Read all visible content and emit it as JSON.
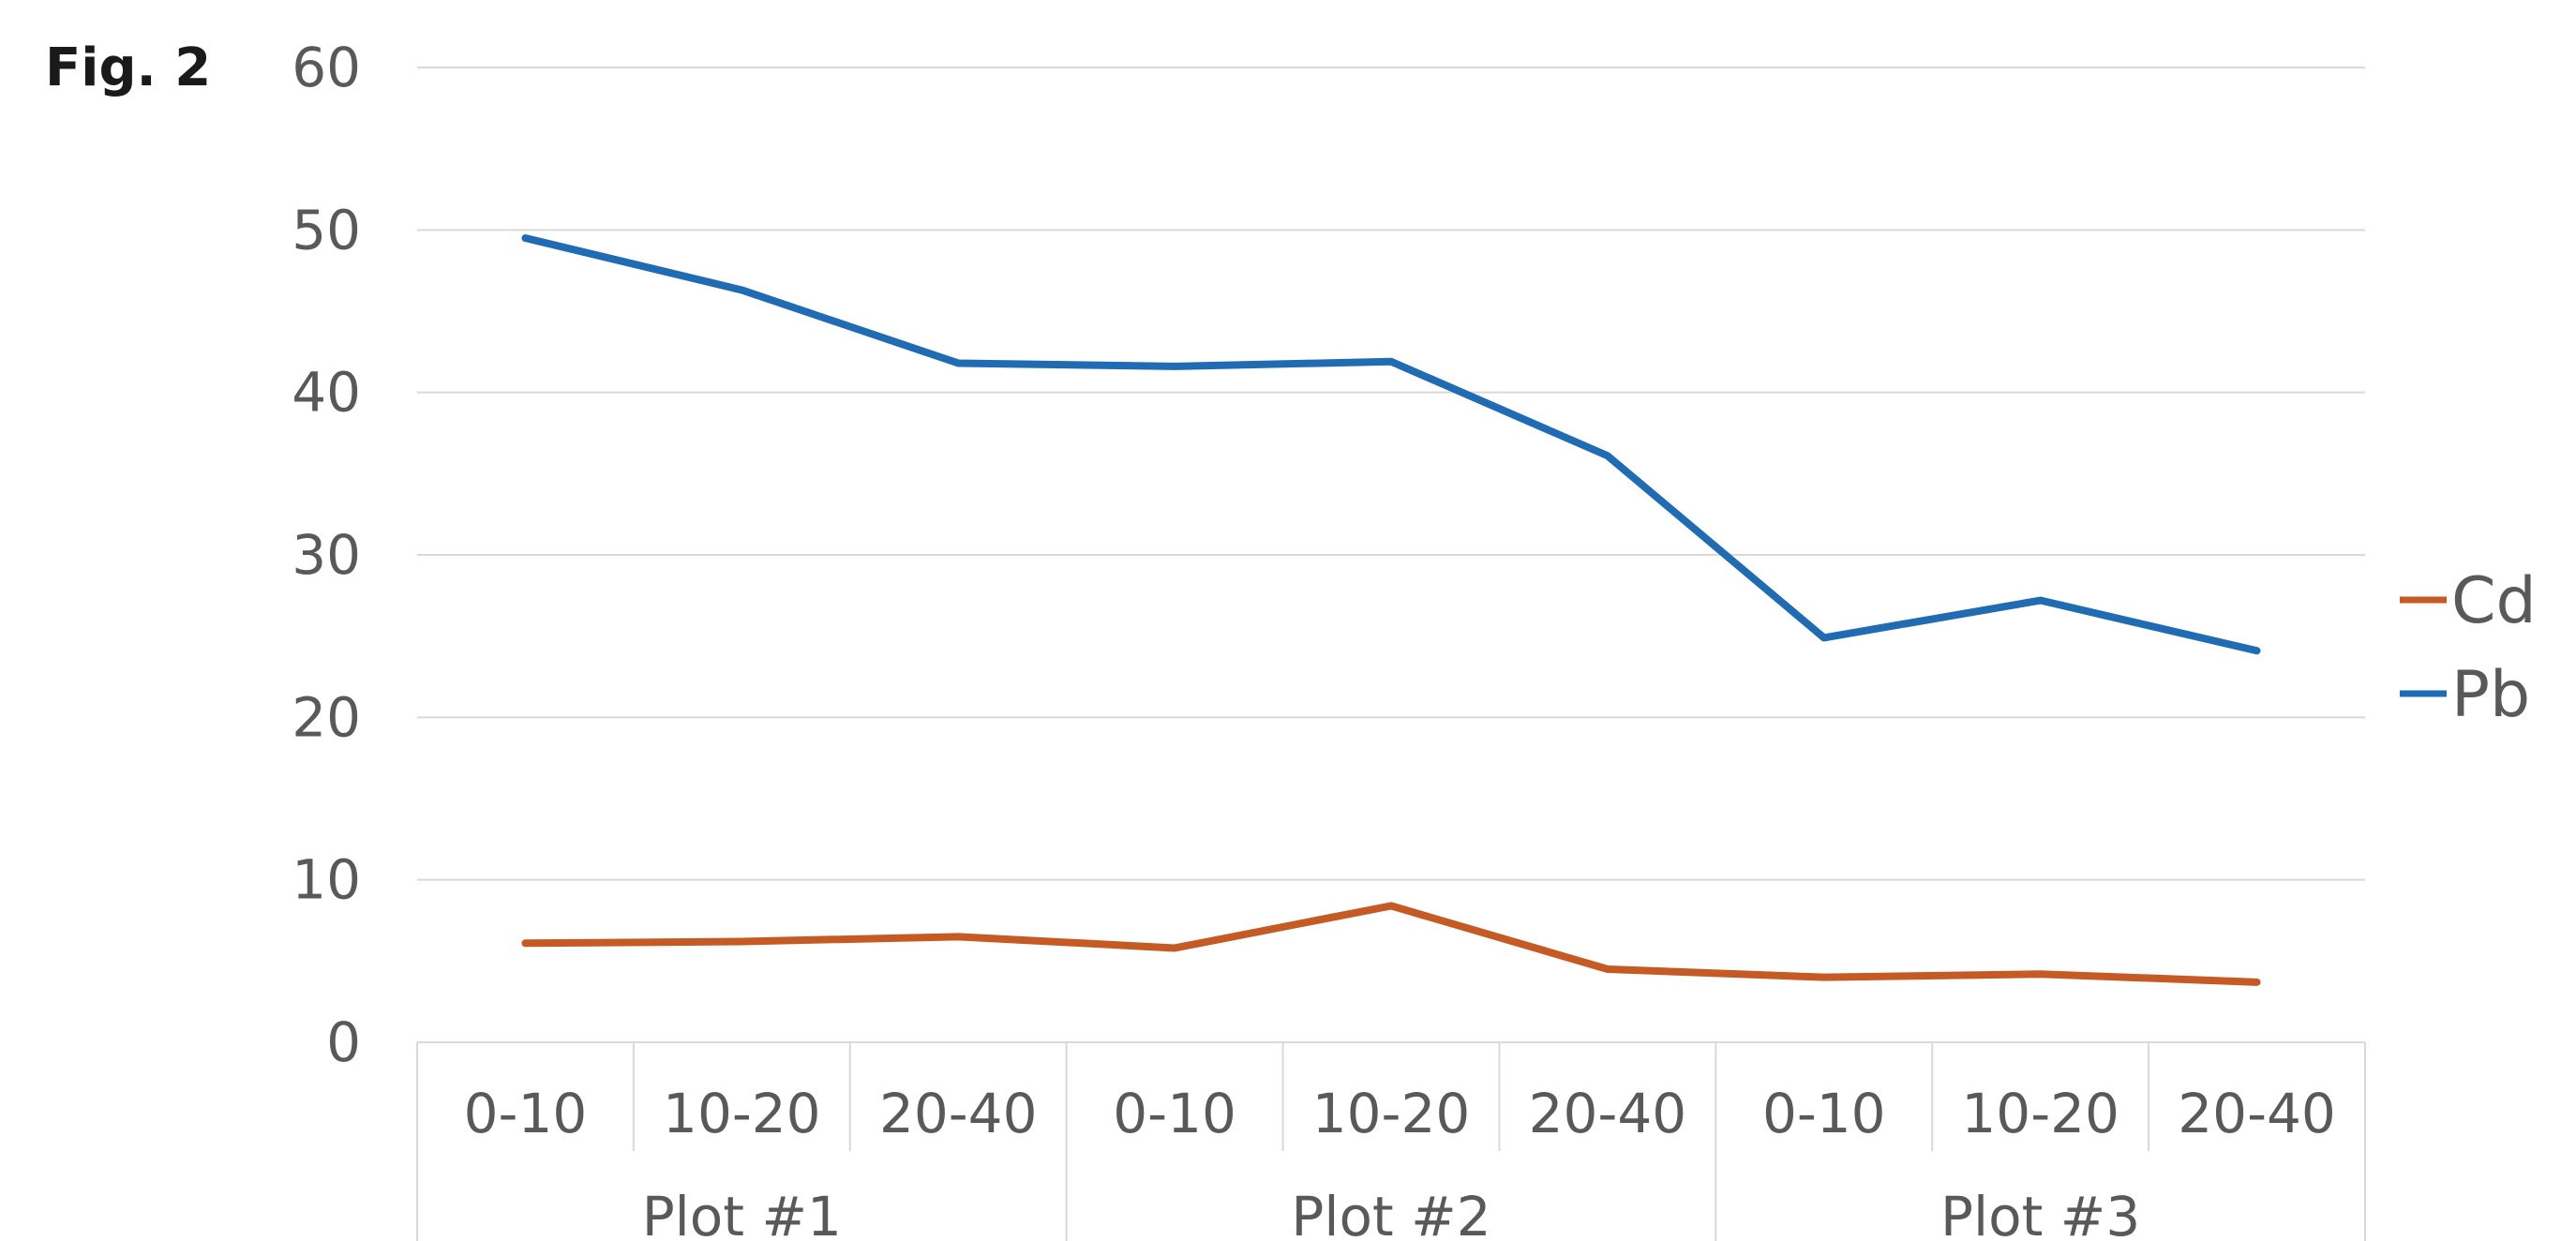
{
  "figure_label": "Fig. 2",
  "chart_data": {
    "type": "line",
    "y_ticks": [
      "0",
      "10",
      "20",
      "30",
      "40",
      "50",
      "60"
    ],
    "ylim": [
      0,
      60
    ],
    "grid": true,
    "legend_position": "right",
    "groups": [
      {
        "label": "Plot #1",
        "categories": [
          "0-10",
          "10-20",
          "20-40"
        ]
      },
      {
        "label": "Plot #2",
        "categories": [
          "0-10",
          "10-20",
          "20-40"
        ]
      },
      {
        "label": "Plot #3",
        "categories": [
          "0-10",
          "10-20",
          "20-40"
        ]
      }
    ],
    "categories": [
      "0-10",
      "10-20",
      "20-40",
      "0-10",
      "10-20",
      "20-40",
      "0-10",
      "10-20",
      "20-40"
    ],
    "series": [
      {
        "name": "Cd",
        "color": "#C55A24",
        "values": [
          6.1,
          6.2,
          6.5,
          5.8,
          8.4,
          4.5,
          4.0,
          4.2,
          3.7
        ]
      },
      {
        "name": "Pb",
        "color": "#1F6BB4",
        "values": [
          49.5,
          46.3,
          41.8,
          41.6,
          41.9,
          36.1,
          24.9,
          27.2,
          24.1
        ]
      }
    ]
  }
}
